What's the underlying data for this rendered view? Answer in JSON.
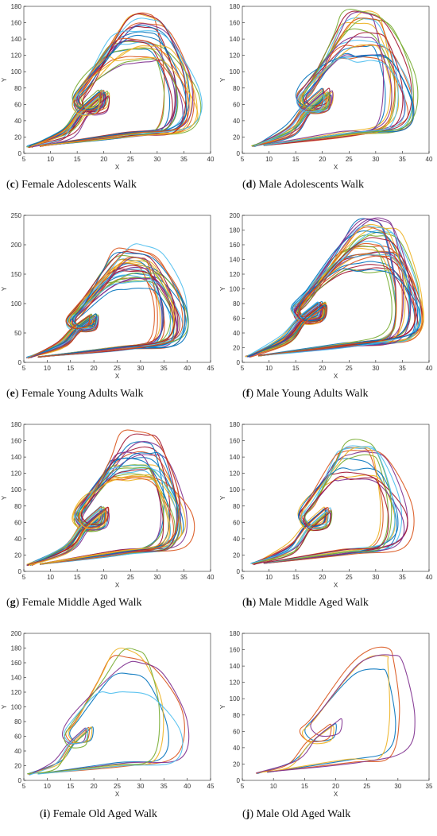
{
  "chart_data": [
    {
      "id": "c",
      "type": "line",
      "caption_letter": "c",
      "caption_text": "Female Adolescents Walk",
      "xlabel": "X",
      "ylabel": "Y",
      "xlim": [
        5,
        40
      ],
      "ylim": [
        0,
        180
      ],
      "xticks": [
        5,
        10,
        15,
        20,
        25,
        30,
        35,
        40
      ],
      "yticks": [
        0,
        20,
        40,
        60,
        80,
        100,
        120,
        140,
        160,
        180
      ],
      "series_count": 24,
      "series_colors": [
        "#0072BD",
        "#D95319",
        "#EDB120",
        "#7E2F8E",
        "#77AC30",
        "#4DBEEE",
        "#A2142F"
      ],
      "start": [
        6,
        8
      ],
      "loop_center": [
        18,
        60
      ],
      "peak": [
        25,
        175
      ],
      "max_x": 38
    },
    {
      "id": "d",
      "type": "line",
      "caption_letter": "d",
      "caption_text": "Male Adolescents Walk",
      "xlabel": "X",
      "ylabel": "Y",
      "xlim": [
        5,
        40
      ],
      "ylim": [
        0,
        180
      ],
      "xticks": [
        5,
        10,
        15,
        20,
        25,
        30,
        35,
        40
      ],
      "yticks": [
        0,
        20,
        40,
        60,
        80,
        100,
        120,
        140,
        160,
        180
      ],
      "series_count": 20,
      "series_colors": [
        "#0072BD",
        "#D95319",
        "#EDB120",
        "#7E2F8E",
        "#77AC30",
        "#4DBEEE",
        "#A2142F"
      ],
      "start": [
        7,
        9
      ],
      "loop_center": [
        19,
        62
      ],
      "peak": [
        26,
        175
      ],
      "max_x": 38
    },
    {
      "id": "e",
      "type": "line",
      "caption_letter": "e",
      "caption_text": "Female Young Adults Walk",
      "xlabel": "X",
      "ylabel": "Y",
      "xlim": [
        5,
        45
      ],
      "ylim": [
        0,
        250
      ],
      "xticks": [
        5,
        10,
        15,
        20,
        25,
        30,
        35,
        40,
        45
      ],
      "yticks": [
        0,
        50,
        100,
        150,
        200,
        250
      ],
      "series_count": 30,
      "series_colors": [
        "#0072BD",
        "#D95319",
        "#EDB120",
        "#7E2F8E",
        "#77AC30",
        "#4DBEEE",
        "#A2142F"
      ],
      "start": [
        6,
        8
      ],
      "loop_center": [
        18,
        65
      ],
      "peak": [
        27,
        200
      ],
      "max_x": 40
    },
    {
      "id": "f",
      "type": "line",
      "caption_letter": "f",
      "caption_text": "Male Young Adults Walk",
      "xlabel": "X",
      "ylabel": "Y",
      "xlim": [
        5,
        40
      ],
      "ylim": [
        0,
        200
      ],
      "xticks": [
        5,
        10,
        15,
        20,
        25,
        30,
        35,
        40
      ],
      "yticks": [
        0,
        20,
        40,
        60,
        80,
        100,
        120,
        140,
        160,
        180,
        200
      ],
      "series_count": 30,
      "series_colors": [
        "#0072BD",
        "#D95319",
        "#EDB120",
        "#7E2F8E",
        "#77AC30",
        "#4DBEEE",
        "#A2142F"
      ],
      "start": [
        6,
        8
      ],
      "loop_center": [
        18,
        65
      ],
      "peak": [
        28,
        195
      ],
      "max_x": 39
    },
    {
      "id": "g",
      "type": "line",
      "caption_letter": "g",
      "caption_text": "Female Middle Aged Walk",
      "xlabel": "X",
      "ylabel": "Y",
      "xlim": [
        5,
        40
      ],
      "ylim": [
        0,
        180
      ],
      "xticks": [
        5,
        10,
        15,
        20,
        25,
        30,
        35,
        40
      ],
      "yticks": [
        0,
        20,
        40,
        60,
        80,
        100,
        120,
        140,
        160,
        180
      ],
      "series_count": 24,
      "series_colors": [
        "#0072BD",
        "#D95319",
        "#EDB120",
        "#7E2F8E",
        "#77AC30",
        "#4DBEEE",
        "#A2142F"
      ],
      "start": [
        6,
        8
      ],
      "loop_center": [
        18,
        62
      ],
      "peak": [
        25,
        175
      ],
      "max_x": 37
    },
    {
      "id": "h",
      "type": "line",
      "caption_letter": "h",
      "caption_text": "Male Middle Aged Walk",
      "xlabel": "X",
      "ylabel": "Y",
      "xlim": [
        5,
        40
      ],
      "ylim": [
        0,
        180
      ],
      "xticks": [
        5,
        10,
        15,
        20,
        25,
        30,
        35,
        40
      ],
      "yticks": [
        0,
        20,
        40,
        60,
        80,
        100,
        120,
        140,
        160,
        180
      ],
      "series_count": 14,
      "series_colors": [
        "#0072BD",
        "#D95319",
        "#EDB120",
        "#7E2F8E",
        "#77AC30",
        "#4DBEEE",
        "#A2142F"
      ],
      "start": [
        7,
        9
      ],
      "loop_center": [
        19,
        62
      ],
      "peak": [
        25,
        170
      ],
      "max_x": 37
    },
    {
      "id": "i",
      "type": "line",
      "caption_letter": "i",
      "caption_text": "Female Old Aged Walk",
      "xlabel": "X",
      "ylabel": "Y",
      "xlim": [
        5,
        45
      ],
      "ylim": [
        0,
        200
      ],
      "xticks": [
        5,
        10,
        15,
        20,
        25,
        30,
        35,
        40,
        45
      ],
      "yticks": [
        0,
        20,
        40,
        60,
        80,
        100,
        120,
        140,
        160,
        180,
        200
      ],
      "series_count": 6,
      "series_colors": [
        "#0072BD",
        "#D95319",
        "#EDB120",
        "#7E2F8E",
        "#77AC30",
        "#4DBEEE",
        "#A2142F"
      ],
      "start": [
        6,
        8
      ],
      "loop_center": [
        17,
        55
      ],
      "peak": [
        26,
        180
      ],
      "max_x": 41
    },
    {
      "id": "j",
      "type": "line",
      "caption_letter": "j",
      "caption_text": "Male Old Aged Walk",
      "xlabel": "X",
      "ylabel": "Y",
      "xlim": [
        5,
        35
      ],
      "ylim": [
        0,
        180
      ],
      "xticks": [
        5,
        10,
        15,
        20,
        25,
        30,
        35
      ],
      "yticks": [
        0,
        20,
        40,
        60,
        80,
        100,
        120,
        140,
        160,
        180
      ],
      "series_count": 4,
      "series_colors": [
        "#0072BD",
        "#D95319",
        "#EDB120",
        "#7E2F8E",
        "#77AC30",
        "#4DBEEE",
        "#A2142F"
      ],
      "start": [
        7,
        9
      ],
      "loop_center": [
        18,
        58
      ],
      "peak": [
        25,
        163
      ],
      "max_x": 33
    }
  ]
}
